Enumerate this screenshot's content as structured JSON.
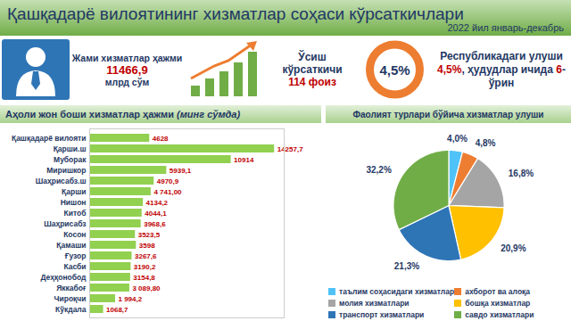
{
  "header": {
    "title": "Қашқадарё вилоятининг хизматлар соҳаси кўрсаткичлари",
    "period": "2022 йил январь-декабрь"
  },
  "stats": {
    "total": {
      "label": "Жами хизматлар ҳажми",
      "value": "11466,9",
      "unit": "млрд сўм"
    },
    "growth": {
      "label": "Ўсиш кўрсаткичи",
      "value": "114 фоиз"
    },
    "donut": {
      "value": "4,5%"
    },
    "share": {
      "parts": [
        {
          "text": "Республикадаги улуши "
        },
        {
          "text": "4,5%",
          "highlight": true
        },
        {
          "text": ", ҳудудлар ичида "
        },
        {
          "text": "6",
          "highlight": true
        },
        {
          "text": "-ўрин"
        }
      ]
    }
  },
  "chart_data": [
    {
      "type": "bar",
      "title": "Аҳоли жон боши хизматлар ҳажми",
      "subtitle": "(минг сўмда)",
      "orientation": "horizontal",
      "categories": [
        "Қашқадарё вилояти",
        "Қарши.ш",
        "Муборак",
        "Миришкор",
        "Шаҳрисабз.ш",
        "Қарши",
        "Нишон",
        "Китоб",
        "Шаҳрисабз",
        "Косон",
        "Қамаши",
        "Ғузор",
        "Касби",
        "Деҳқонобод",
        "Яккабоғ",
        "Чироқчи",
        "Кўкдала"
      ],
      "values": [
        4628,
        14257.7,
        10914,
        5939.1,
        4970.9,
        4741.0,
        4134.2,
        4044.1,
        3968.6,
        3523.5,
        3598,
        3267.6,
        3190.2,
        3154.8,
        3089.8,
        1994.2,
        1068.7
      ],
      "value_labels": [
        "4628",
        "14257,7",
        "10914",
        "5939,1",
        "4970,9",
        "4 741,00",
        "4134,2",
        "4044,1",
        "3968,6",
        "3523,5",
        "3598",
        "3267,6",
        "3190,2",
        "3154,8",
        "3 089,80",
        "1 994,2",
        "1068,7"
      ],
      "color": "#92d050",
      "xlim": [
        0,
        15000
      ],
      "data_labels": true,
      "tick_labels": "y"
    },
    {
      "type": "pie",
      "title": "Фаолият турлари бўйича хизматлар улуши",
      "categories": [
        "таълим соҳасидаги хизматлар",
        "ахборот ва алоқа",
        "молия хизматлари",
        "бошқа хизматлар",
        "транспорт хизматлари",
        "савдо хизматлари"
      ],
      "values": [
        4.0,
        4.8,
        16.8,
        20.9,
        21.3,
        32.2
      ],
      "value_labels": [
        "4,0%",
        "4,8%",
        "16,8%",
        "20,9%",
        "21,3%",
        "32,2%"
      ],
      "colors": [
        "#4fc3f7",
        "#ed7d31",
        "#a5a5a5",
        "#ffc000",
        "#2e75b6",
        "#70ad47"
      ],
      "data_labels": true,
      "legend": "bottom"
    }
  ]
}
